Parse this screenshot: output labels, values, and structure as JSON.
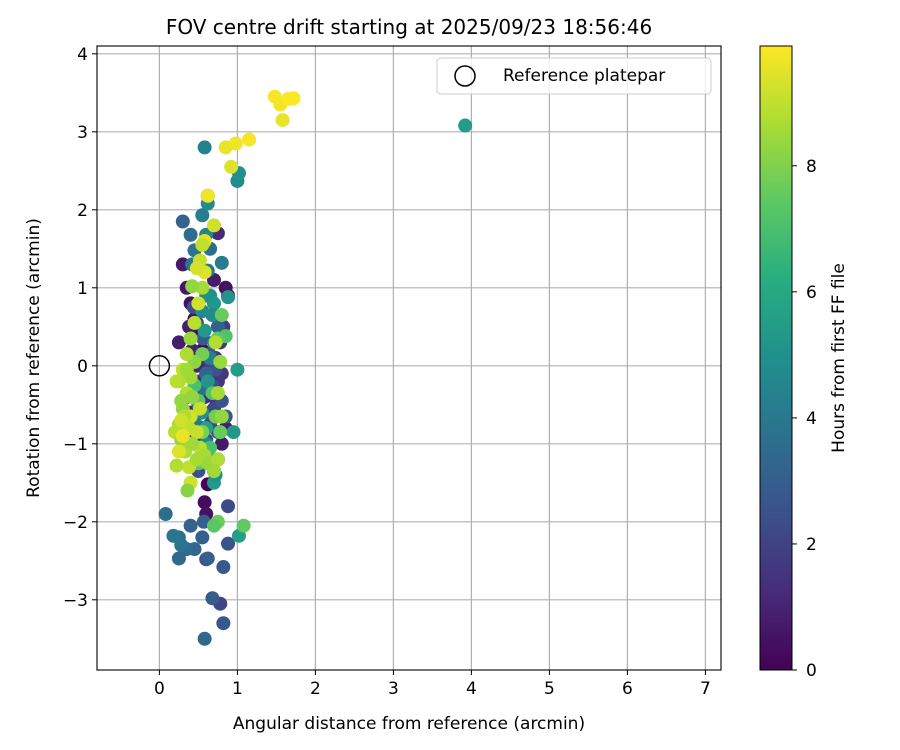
{
  "chart_data": {
    "type": "scatter",
    "title": "FOV centre drift starting at 2025/09/23 18:56:46",
    "xlabel": "Angular distance from reference (arcmin)",
    "ylabel": "Rotation from reference (arcmin)",
    "xlim": [
      -0.8,
      7.2
    ],
    "ylim": [
      -3.9,
      4.1
    ],
    "xticks": [
      0,
      1,
      2,
      3,
      4,
      5,
      6,
      7
    ],
    "yticks": [
      -3,
      -2,
      -1,
      0,
      1,
      2,
      3,
      4
    ],
    "xtick_labels": [
      "0",
      "1",
      "2",
      "3",
      "4",
      "5",
      "6",
      "7"
    ],
    "ytick_labels": [
      "−3",
      "−2",
      "−1",
      "0",
      "1",
      "2",
      "3",
      "4"
    ],
    "grid": true,
    "legend": {
      "position": "top-right",
      "entries": [
        {
          "label": "Reference platepar",
          "marker": "open-circle"
        }
      ]
    },
    "reference_point": {
      "x": 0,
      "y": 0
    },
    "colorbar": {
      "label": "Hours from first FF file",
      "colormap": "viridis",
      "range": [
        0,
        9.9
      ],
      "ticks": [
        0,
        2,
        4,
        6,
        8
      ],
      "tick_labels": [
        "0",
        "2",
        "4",
        "6",
        "8"
      ]
    },
    "series": [
      {
        "name": "FOV centre drift",
        "color_field": "hours",
        "points": [
          [
            0.62,
            -1.52,
            0.1
          ],
          [
            0.58,
            -1.75,
            0.3
          ],
          [
            0.6,
            -1.9,
            0.5
          ],
          [
            0.7,
            -1.35,
            0.4
          ],
          [
            0.75,
            -1.2,
            0.6
          ],
          [
            0.8,
            -1.0,
            0.7
          ],
          [
            0.85,
            -0.8,
            0.8
          ],
          [
            0.5,
            -1.2,
            1.0
          ],
          [
            0.45,
            -1.0,
            1.1
          ],
          [
            0.55,
            -0.8,
            1.2
          ],
          [
            0.4,
            -0.6,
            0.9
          ],
          [
            0.35,
            -0.4,
            1.3
          ],
          [
            0.65,
            -0.6,
            1.4
          ],
          [
            0.7,
            -0.4,
            1.5
          ],
          [
            0.75,
            -0.2,
            1.6
          ],
          [
            0.8,
            -0.1,
            1.7
          ],
          [
            0.6,
            0.0,
            1.8
          ],
          [
            0.55,
            0.2,
            0.2
          ],
          [
            0.5,
            0.4,
            0.3
          ],
          [
            0.45,
            0.6,
            0.4
          ],
          [
            0.4,
            0.8,
            0.5
          ],
          [
            0.35,
            1.0,
            0.6
          ],
          [
            0.3,
            1.3,
            0.7
          ],
          [
            0.25,
            0.3,
            0.8
          ],
          [
            0.38,
            0.5,
            0.9
          ],
          [
            0.42,
            0.2,
            1.0
          ],
          [
            0.48,
            0.0,
            1.1
          ],
          [
            0.52,
            -0.2,
            1.2
          ],
          [
            0.58,
            -0.4,
            1.3
          ],
          [
            0.62,
            -0.3,
            1.4
          ],
          [
            0.68,
            -0.1,
            1.5
          ],
          [
            0.72,
            0.1,
            1.6
          ],
          [
            0.78,
            0.3,
            1.7
          ],
          [
            0.82,
            0.5,
            1.8
          ],
          [
            0.88,
            0.9,
            0.2
          ],
          [
            0.85,
            1.0,
            0.5
          ],
          [
            0.7,
            1.1,
            0.8
          ],
          [
            0.75,
            1.7,
            1.2
          ],
          [
            0.7,
            -0.55,
            2.1
          ],
          [
            0.65,
            -0.75,
            2.2
          ],
          [
            0.6,
            -0.95,
            2.3
          ],
          [
            0.55,
            -1.15,
            2.4
          ],
          [
            0.5,
            -1.35,
            2.5
          ],
          [
            0.8,
            -0.45,
            2.6
          ],
          [
            0.85,
            -0.65,
            2.7
          ],
          [
            0.75,
            -0.85,
            2.8
          ],
          [
            0.45,
            -0.75,
            2.9
          ],
          [
            0.4,
            -0.95,
            2.0
          ],
          [
            0.68,
            -0.25,
            2.3
          ],
          [
            0.72,
            -0.05,
            2.5
          ],
          [
            0.64,
            0.15,
            2.7
          ],
          [
            0.56,
            0.35,
            2.9
          ],
          [
            0.48,
            0.55,
            2.1
          ],
          [
            0.44,
            0.75,
            2.4
          ],
          [
            0.88,
            -1.8,
            2.2
          ],
          [
            0.78,
            -3.05,
            2.1
          ],
          [
            0.82,
            -2.58,
            2.8
          ],
          [
            0.88,
            -2.28,
            2.6
          ],
          [
            0.6,
            -2.48,
            2.4
          ],
          [
            0.55,
            -2.2,
            3.1
          ],
          [
            0.45,
            -2.35,
            3.3
          ],
          [
            0.35,
            -2.35,
            3.5
          ],
          [
            0.25,
            -2.2,
            3.7
          ],
          [
            0.18,
            -2.18,
            3.9
          ],
          [
            0.25,
            -2.47,
            3.4
          ],
          [
            0.4,
            -2.05,
            3.2
          ],
          [
            0.08,
            -1.9,
            3.6
          ],
          [
            0.28,
            -2.3,
            3.8
          ],
          [
            0.62,
            -2.47,
            3.0
          ],
          [
            0.57,
            -2.0,
            3.0
          ],
          [
            0.68,
            -2.98,
            2.9
          ],
          [
            0.58,
            -3.5,
            3.3
          ],
          [
            0.82,
            -3.3,
            2.7
          ],
          [
            0.6,
            -0.1,
            3.2
          ],
          [
            0.55,
            -0.3,
            3.5
          ],
          [
            0.5,
            -0.5,
            3.8
          ],
          [
            0.45,
            -0.7,
            4.0
          ],
          [
            0.65,
            0.1,
            4.2
          ],
          [
            0.7,
            0.3,
            4.4
          ],
          [
            0.75,
            0.5,
            3.1
          ],
          [
            0.3,
            1.85,
            3.2
          ],
          [
            0.4,
            1.68,
            3.5
          ],
          [
            0.45,
            1.48,
            3.8
          ],
          [
            0.42,
            1.3,
            4.0
          ],
          [
            0.55,
            1.93,
            4.2
          ],
          [
            0.6,
            1.68,
            4.4
          ],
          [
            0.65,
            1.5,
            3.6
          ],
          [
            0.8,
            1.32,
            4.1
          ],
          [
            0.62,
            1.22,
            3.9
          ],
          [
            0.58,
            2.8,
            4.3
          ],
          [
            0.62,
            2.18,
            4.6
          ],
          [
            0.62,
            2.08,
            4.7
          ],
          [
            1.0,
            2.37,
            4.8
          ],
          [
            1.02,
            2.47,
            5.0
          ],
          [
            0.6,
            0.9,
            4.5
          ],
          [
            0.55,
            0.7,
            4.8
          ],
          [
            0.65,
            0.9,
            5.0
          ],
          [
            0.7,
            0.8,
            5.2
          ],
          [
            0.58,
            0.45,
            5.3
          ],
          [
            0.88,
            0.88,
            5.1
          ],
          [
            0.95,
            -0.85,
            5.2
          ],
          [
            0.7,
            -1.5,
            5.4
          ],
          [
            1.0,
            -0.05,
            5.5
          ],
          [
            1.02,
            -2.18,
            5.6
          ],
          [
            3.92,
            3.08,
            5.4
          ],
          [
            0.55,
            -0.6,
            4.9
          ],
          [
            0.62,
            -0.2,
            5.1
          ],
          [
            0.68,
            0.65,
            4.7
          ],
          [
            0.6,
            -1.0,
            4.6
          ],
          [
            0.65,
            -1.2,
            5.3
          ],
          [
            0.72,
            -1.4,
            4.9
          ],
          [
            0.6,
            -0.8,
            5.7
          ],
          [
            1.08,
            -2.05,
            7.5
          ],
          [
            0.75,
            -2.0,
            7.7
          ],
          [
            0.7,
            -2.05,
            7.4
          ],
          [
            0.85,
            0.38,
            7.2
          ],
          [
            0.75,
            0.35,
            7.4
          ],
          [
            0.8,
            0.65,
            7.6
          ],
          [
            0.55,
            0.15,
            7.8
          ],
          [
            0.78,
            -0.85,
            7.6
          ],
          [
            0.72,
            -0.65,
            7.8
          ],
          [
            0.68,
            -0.35,
            7.2
          ],
          [
            0.45,
            -0.25,
            7.0
          ],
          [
            0.5,
            -0.45,
            7.3
          ],
          [
            0.55,
            -0.85,
            7.9
          ],
          [
            0.65,
            -1.05,
            7.0
          ],
          [
            0.5,
            -1.25,
            7.5
          ],
          [
            0.45,
            0.05,
            8.2
          ],
          [
            0.4,
            -0.15,
            8.5
          ],
          [
            0.35,
            -0.35,
            8.8
          ],
          [
            0.3,
            -0.55,
            8.3
          ],
          [
            0.25,
            -0.75,
            8.6
          ],
          [
            0.2,
            -0.85,
            8.9
          ],
          [
            0.28,
            -0.95,
            8.4
          ],
          [
            0.33,
            -1.1,
            8.7
          ],
          [
            0.38,
            -1.3,
            9.0
          ],
          [
            0.4,
            -1.5,
            9.2
          ],
          [
            0.36,
            -1.6,
            8.1
          ],
          [
            0.22,
            -1.28,
            8.8
          ],
          [
            0.4,
            -0.65,
            9.3
          ],
          [
            0.48,
            -0.85,
            9.1
          ],
          [
            0.52,
            -1.05,
            8.9
          ],
          [
            0.58,
            -1.15,
            8.6
          ],
          [
            0.62,
            -1.25,
            8.4
          ],
          [
            0.3,
            -0.05,
            9.0
          ],
          [
            0.35,
            0.15,
            8.7
          ],
          [
            0.4,
            0.35,
            8.4
          ],
          [
            0.45,
            0.55,
            8.9
          ],
          [
            0.5,
            0.8,
            9.2
          ],
          [
            0.55,
            1.0,
            8.6
          ],
          [
            0.42,
            1.02,
            8.3
          ],
          [
            0.58,
            1.2,
            9.4
          ],
          [
            0.52,
            1.35,
            9.1
          ],
          [
            0.48,
            1.25,
            9.3
          ],
          [
            0.58,
            1.6,
            9.5
          ],
          [
            0.55,
            1.55,
            9.0
          ],
          [
            0.7,
            1.8,
            9.2
          ],
          [
            0.62,
            2.18,
            9.7
          ],
          [
            0.25,
            -0.2,
            8.7
          ],
          [
            0.28,
            -0.45,
            8.3
          ],
          [
            0.32,
            -0.65,
            8.8
          ],
          [
            0.38,
            -0.8,
            9.0
          ],
          [
            0.42,
            -1.0,
            8.5
          ],
          [
            0.48,
            -1.2,
            8.6
          ],
          [
            0.52,
            -0.55,
            9.1
          ],
          [
            0.42,
            -0.4,
            8.3
          ],
          [
            0.35,
            -0.05,
            8.5
          ],
          [
            0.22,
            -0.2,
            8.9
          ],
          [
            0.28,
            -0.7,
            9.2
          ],
          [
            0.72,
            0.3,
            8.8
          ],
          [
            0.78,
            0.05,
            8.4
          ],
          [
            0.75,
            -0.35,
            8.6
          ],
          [
            0.8,
            -0.65,
            8.3
          ],
          [
            0.75,
            -1.2,
            8.7
          ],
          [
            0.7,
            -1.35,
            8.5
          ],
          [
            0.25,
            -1.1,
            9.4
          ],
          [
            0.3,
            -0.9,
            9.6
          ],
          [
            0.92,
            2.55,
            9.4
          ],
          [
            0.85,
            2.8,
            9.6
          ],
          [
            0.98,
            2.85,
            9.7
          ],
          [
            1.15,
            2.9,
            9.8
          ],
          [
            1.48,
            3.45,
            9.8
          ],
          [
            1.55,
            3.35,
            9.7
          ],
          [
            1.58,
            3.15,
            9.6
          ],
          [
            1.65,
            3.42,
            9.9
          ],
          [
            1.72,
            3.43,
            9.85
          ]
        ]
      }
    ]
  }
}
